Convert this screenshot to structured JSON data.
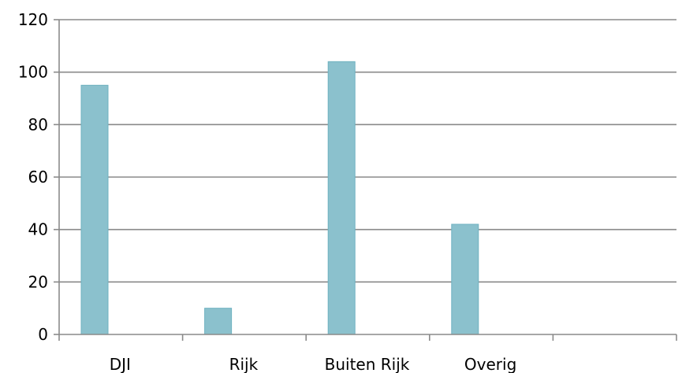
{
  "chart_data": {
    "type": "bar",
    "title": "",
    "xlabel": "",
    "ylabel": "",
    "categories": [
      "DJI",
      "Rijk",
      "Buiten Rijk",
      "Overig",
      ""
    ],
    "values": [
      95,
      10,
      104,
      42,
      null
    ],
    "ylim": [
      0,
      120
    ],
    "yticks": [
      0,
      20,
      40,
      60,
      80,
      100,
      120
    ],
    "grid": true,
    "legend": "none",
    "bar_color": "#8bc1cd"
  }
}
